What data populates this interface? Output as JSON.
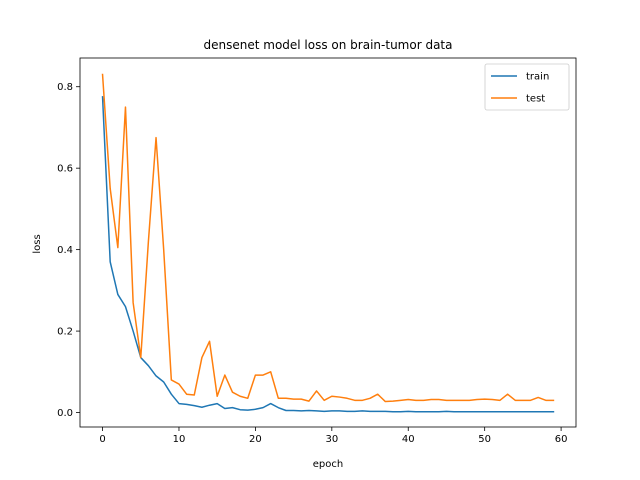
{
  "chart_data": {
    "type": "line",
    "title": "densenet model loss on brain-tumor data",
    "xlabel": "epoch",
    "ylabel": "loss",
    "xlim": [
      -2.95,
      61.95
    ],
    "ylim": [
      -0.0355,
      0.8705
    ],
    "xticks": [
      0,
      10,
      20,
      30,
      40,
      50,
      60
    ],
    "yticks": [
      0.0,
      0.2,
      0.4,
      0.6,
      0.8
    ],
    "xtick_labels": [
      "0",
      "10",
      "20",
      "30",
      "40",
      "50",
      "60"
    ],
    "ytick_labels": [
      "0.0",
      "0.2",
      "0.4",
      "0.6",
      "0.8"
    ],
    "grid": false,
    "legend_position": "top-right",
    "x": [
      0,
      1,
      2,
      3,
      4,
      5,
      6,
      7,
      8,
      9,
      10,
      11,
      12,
      13,
      14,
      15,
      16,
      17,
      18,
      19,
      20,
      21,
      22,
      23,
      24,
      25,
      26,
      27,
      28,
      29,
      30,
      31,
      32,
      33,
      34,
      35,
      36,
      37,
      38,
      39,
      40,
      41,
      42,
      43,
      44,
      45,
      46,
      47,
      48,
      49,
      50,
      51,
      52,
      53,
      54,
      55,
      56,
      57,
      58,
      59
    ],
    "series": [
      {
        "name": "train",
        "color": "#1f77b4",
        "values": [
          0.775,
          0.37,
          0.29,
          0.26,
          0.2,
          0.135,
          0.115,
          0.09,
          0.075,
          0.045,
          0.022,
          0.02,
          0.017,
          0.013,
          0.018,
          0.022,
          0.01,
          0.012,
          0.007,
          0.006,
          0.008,
          0.012,
          0.022,
          0.012,
          0.005,
          0.005,
          0.004,
          0.005,
          0.004,
          0.003,
          0.004,
          0.004,
          0.003,
          0.003,
          0.004,
          0.003,
          0.003,
          0.003,
          0.002,
          0.002,
          0.003,
          0.002,
          0.002,
          0.002,
          0.002,
          0.003,
          0.002,
          0.002,
          0.002,
          0.002,
          0.002,
          0.002,
          0.002,
          0.002,
          0.002,
          0.002,
          0.002,
          0.002,
          0.002,
          0.002
        ]
      },
      {
        "name": "test",
        "color": "#ff7f0e",
        "values": [
          0.83,
          0.55,
          0.405,
          0.75,
          0.27,
          0.135,
          0.42,
          0.675,
          0.4,
          0.08,
          0.07,
          0.045,
          0.043,
          0.135,
          0.175,
          0.04,
          0.092,
          0.05,
          0.04,
          0.035,
          0.092,
          0.092,
          0.1,
          0.035,
          0.035,
          0.033,
          0.033,
          0.028,
          0.053,
          0.03,
          0.04,
          0.038,
          0.035,
          0.03,
          0.03,
          0.035,
          0.045,
          0.027,
          0.028,
          0.03,
          0.032,
          0.03,
          0.03,
          0.032,
          0.032,
          0.03,
          0.03,
          0.03,
          0.03,
          0.032,
          0.033,
          0.032,
          0.03,
          0.045,
          0.03,
          0.03,
          0.03,
          0.037,
          0.03,
          0.03
        ]
      }
    ]
  }
}
